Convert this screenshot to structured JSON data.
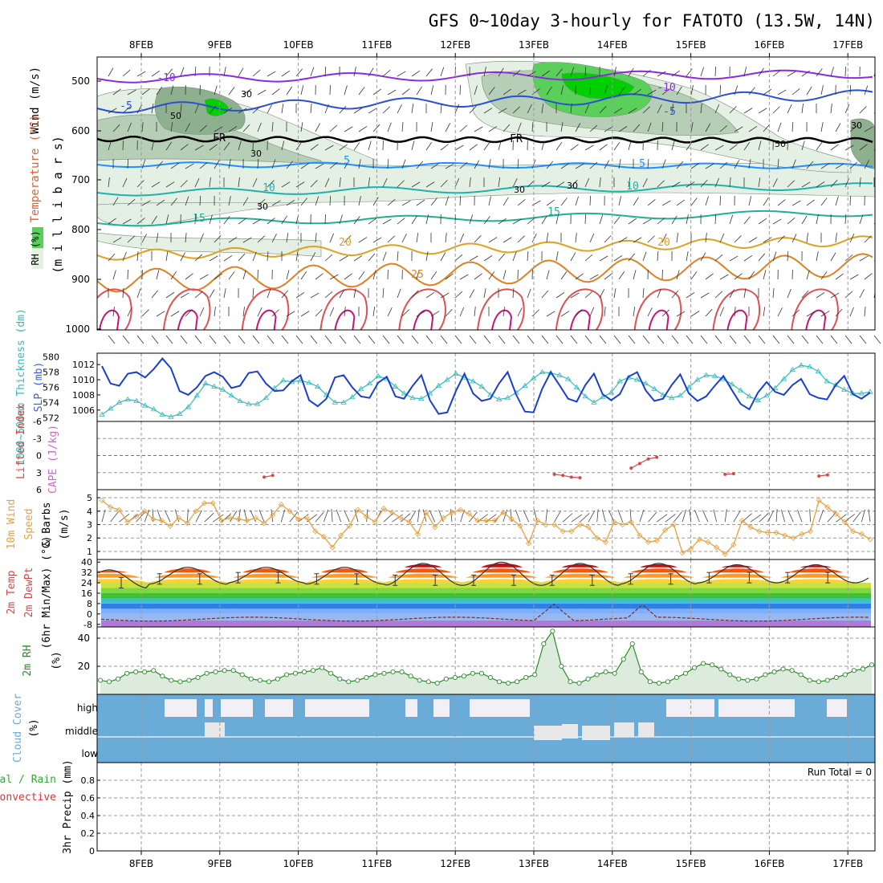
{
  "title": "GFS 0~10day 3-hourly for FATOTO (13.5W, 14N)",
  "dates": [
    "8FEB",
    "9FEB",
    "10FEB",
    "11FEB",
    "12FEB",
    "13FEB",
    "14FEB",
    "15FEB",
    "16FEB",
    "17FEB"
  ],
  "colors": {
    "rh_light": "#e4f0e4",
    "rh_mid": "#b5ceb5",
    "rh_dark": "#8fb08f",
    "rh_bright": "#5ad05a",
    "rh_max": "#00d000",
    "slp": "#1a3fd0",
    "thickness": "#33bbbb",
    "cape": "#cc66cc",
    "lifted": "#dd4444",
    "wind10": "#e8a040",
    "rh2m": "#2a8a2a",
    "cloud": "#6aabd8",
    "precip_total": "#33aa33",
    "precip_conv": "#dd3333"
  },
  "panels": {
    "upper": {
      "ylabel_wind": "Wind (m/s)",
      "ylabel_temp": "Temperature (°C)",
      "ylabel_rh": "RH (%)",
      "ylabel_mb": "(m i l l i b a r s)",
      "levels": [
        "500",
        "600",
        "700",
        "800",
        "900",
        "1000"
      ],
      "rh_labels": [
        "30",
        "50",
        "30",
        "50",
        "30",
        "30",
        "30",
        "30"
      ],
      "fr_label": "FR",
      "isotherm_labels": [
        "-10",
        "-5",
        "5",
        "10",
        "15",
        "20",
        "25",
        "-10",
        "-5",
        "5",
        "10",
        "15",
        "20",
        "FR",
        "FR"
      ]
    },
    "slp": {
      "ylabel_thick": "1000~500mb Thickness (dm)",
      "ylabel_slp": "SLP (mb)",
      "left_ticks": [
        "580",
        "578",
        "576",
        "574",
        "572"
      ],
      "right_ticks": [
        "1012",
        "1010",
        "1008",
        "1006"
      ]
    },
    "lifted": {
      "ylabel_li": "Lifted Index",
      "ylabel_cape": "CAPE (J/kg)",
      "ticks": [
        "-6",
        "-3",
        "0",
        "3",
        "6"
      ]
    },
    "wind10": {
      "ylabel1": "10m Wind",
      "ylabel2": "Speed",
      "ylabel3": "& Barbs",
      "ylabel_unit": "(m/s)",
      "ticks": [
        "5",
        "4",
        "3",
        "2",
        "1"
      ]
    },
    "temp2m": {
      "ylabel1": "2m Temp",
      "ylabel2": "2m DewPt",
      "ylabel3": "(6hr Min/Max) (°C)",
      "ticks": [
        "40",
        "32",
        "24",
        "16",
        "8",
        "0",
        "-8"
      ]
    },
    "rh2m": {
      "ylabel": "2m RH",
      "ylabel_unit": "(%)",
      "ticks": [
        "40",
        "20"
      ]
    },
    "cloud": {
      "ylabel": "Cloud Cover",
      "ylabel_unit": "(%)",
      "levels": [
        "high",
        "middle",
        "low"
      ]
    },
    "precip": {
      "ylabel1": "Total / Rain",
      "ylabel2": "Convective",
      "ylabel3": "3hr Precip (mm)",
      "ticks": [
        "0.8",
        "0.6",
        "0.4",
        "0.2",
        "0"
      ],
      "run_total": "Run Total = 0"
    }
  },
  "chart_data": [
    {
      "type": "line",
      "title": "SLP (mb) and 1000~500mb Thickness (dm)",
      "x_unit": "3-hourly steps from 7FEB 18Z",
      "series": [
        {
          "name": "SLP (mb)",
          "ylim": [
            1004.5,
            1013.5
          ],
          "values": [
            1011.8,
            1009.5,
            1009.2,
            1010.8,
            1011,
            1010.3,
            1011.4,
            1012.8,
            1011.5,
            1008.5,
            1008,
            1009,
            1010.5,
            1011,
            1010.4,
            1008.9,
            1009.2,
            1010.9,
            1011.1,
            1009.5,
            1008.5,
            1008.6,
            1009.8,
            1010.6,
            1007.3,
            1006.5,
            1007.5,
            1010.3,
            1010.6,
            1009,
            1007.8,
            1007.6,
            1009.6,
            1010.4,
            1007.8,
            1007.5,
            1009.2,
            1010.6,
            1007.3,
            1005.5,
            1005.7,
            1008.5,
            1010.8,
            1008.2,
            1007.2,
            1007.5,
            1009.5,
            1011,
            1008,
            1005.8,
            1005.7,
            1008.8,
            1011,
            1009.3,
            1007.5,
            1007.1,
            1009.3,
            1010.8,
            1008.1,
            1007.3,
            1008.1,
            1010.4,
            1011,
            1008.6,
            1007.2,
            1007.5,
            1009.3,
            1010.7,
            1008.2,
            1007.2,
            1007.8,
            1009.2,
            1010.5,
            1008.6,
            1006.8,
            1006.1,
            1008.3,
            1009.7,
            1008.4,
            1008,
            1009.3,
            1010.1,
            1008.1,
            1007.6,
            1007.4,
            1009.3,
            1010.5,
            1008.1,
            1007.5,
            1008.3
          ]
        },
        {
          "name": "1000~500mb Thickness (dm)",
          "ylim": [
            571.5,
            580.5
          ],
          "values": [
            572.4,
            573.2,
            574,
            574.4,
            574.2,
            573.6,
            573.1,
            572.4,
            572.1,
            572.5,
            573.4,
            574.9,
            576.5,
            576.1,
            575.7,
            574.9,
            574.2,
            573.8,
            573.8,
            574.6,
            575.9,
            576.9,
            576.7,
            576.9,
            576.6,
            576.1,
            575,
            574,
            574,
            574.7,
            575.8,
            576.5,
            577.5,
            577.1,
            576.1,
            575.2,
            574.6,
            574.5,
            575.2,
            576.2,
            577,
            577.8,
            577.3,
            576.8,
            576.1,
            575,
            574.4,
            574.6,
            575.3,
            576.2,
            577.2,
            578,
            577.9,
            577.6,
            577.1,
            576,
            574.8,
            574,
            574.7,
            575.3,
            576.8,
            577.3,
            577,
            576.5,
            575.8,
            575,
            574.6,
            574.9,
            576,
            577,
            577.6,
            577.5,
            577.1,
            576.4,
            575.6,
            574.8,
            574.3,
            574.9,
            575.9,
            577.1,
            578.3,
            578.9,
            578.7,
            578.1,
            576.8,
            576.3,
            575.7,
            575.2,
            575.2,
            575.4
          ]
        }
      ]
    },
    {
      "type": "line",
      "title": "Lifted Index",
      "ylim": [
        6,
        -6
      ],
      "segments": [
        {
          "x": [
            19,
            20
          ],
          "values": [
            3.8,
            3.5
          ]
        },
        {
          "x": [
            53,
            54,
            55,
            56
          ],
          "values": [
            3.3,
            3.5,
            3.8,
            3.9
          ]
        },
        {
          "x": [
            62,
            63,
            64,
            65
          ],
          "values": [
            2.2,
            1.4,
            0.6,
            0.3
          ]
        },
        {
          "x": [
            73,
            74
          ],
          "values": [
            3.3,
            3.2
          ]
        },
        {
          "x": [
            84,
            85
          ],
          "values": [
            3.6,
            3.4
          ]
        }
      ],
      "reference_line": 0
    },
    {
      "type": "line",
      "title": "10m Wind Speed (m/s)",
      "ylim": [
        0.4,
        5.6
      ],
      "values": [
        4.8,
        4.3,
        4.1,
        3.2,
        3.6,
        4.0,
        3.4,
        3.3,
        2.9,
        3.5,
        3.1,
        4.0,
        4.6,
        4.6,
        3.3,
        3.5,
        3.4,
        3.3,
        3.5,
        3.1,
        3.7,
        4.5,
        4.0,
        3.4,
        3.5,
        2.5,
        2.1,
        1.3,
        2.2,
        2.9,
        4.1,
        3.6,
        3.2,
        4.2,
        3.9,
        3.5,
        3.2,
        2.3,
        3.9,
        2.8,
        3.5,
        3.9,
        4.1,
        3.8,
        3.3,
        3.3,
        3.3,
        3.9,
        3.4,
        2.9,
        1.6,
        3.3,
        3.0,
        3.0,
        2.5,
        2.5,
        3.0,
        2.8,
        2.0,
        1.7,
        3.2,
        3.0,
        3.2,
        2.2,
        1.7,
        1.8,
        2.6,
        3.0,
        0.9,
        1.2,
        1.9,
        1.7,
        1.3,
        0.8,
        1.5,
        3.3,
        2.8,
        2.5,
        2.4,
        2.4,
        2.2,
        2.0,
        2.3,
        2.5,
        4.8,
        4.3,
        3.8,
        3.2,
        2.5,
        2.3,
        1.9
      ]
    },
    {
      "type": "area",
      "title": "2m Temp / 2m DewPt (°C)",
      "ylim": [
        -10,
        42
      ],
      "temp_daily_max": [
        34,
        36,
        36,
        36,
        39,
        40,
        39,
        39,
        38,
        38
      ],
      "temp_daily_min": [
        20,
        23,
        24,
        23,
        22,
        22,
        22,
        23,
        24,
        24
      ],
      "dewpoint_range": [
        -5,
        10
      ],
      "dewpoint_peaks": [
        {
          "date": "13FEB",
          "value": 10
        },
        {
          "date": "14FEB",
          "value": 8
        }
      ]
    },
    {
      "type": "line",
      "title": "2m RH (%)",
      "ylim": [
        0,
        48
      ],
      "values": [
        10,
        9,
        11,
        15,
        16,
        16,
        17,
        13,
        10,
        9,
        10,
        12,
        15,
        16,
        17,
        17,
        14,
        11,
        10,
        9,
        11,
        14,
        15,
        16,
        17,
        19,
        15,
        11,
        9,
        10,
        12,
        14,
        15,
        16,
        16,
        13,
        10,
        9,
        8,
        11,
        12,
        13,
        15,
        15,
        12,
        9,
        8,
        9,
        12,
        14,
        36,
        45,
        20,
        9,
        8,
        11,
        14,
        16,
        15,
        25,
        36,
        16,
        9,
        8,
        9,
        12,
        15,
        19,
        22,
        21,
        18,
        14,
        11,
        10,
        11,
        14,
        16,
        18,
        17,
        14,
        10,
        9,
        10,
        12,
        14,
        17,
        18,
        21
      ]
    },
    {
      "type": "heatmap",
      "title": "Cloud Cover (%)",
      "levels": [
        "high",
        "middle",
        "low"
      ],
      "clear_gaps_high_fraction": 0.45,
      "clear_gaps_middle_fraction": 0.2
    },
    {
      "type": "bar",
      "title": "3hr Precip (mm)",
      "ylim": [
        0,
        1
      ],
      "values": [],
      "run_total": 0
    }
  ]
}
